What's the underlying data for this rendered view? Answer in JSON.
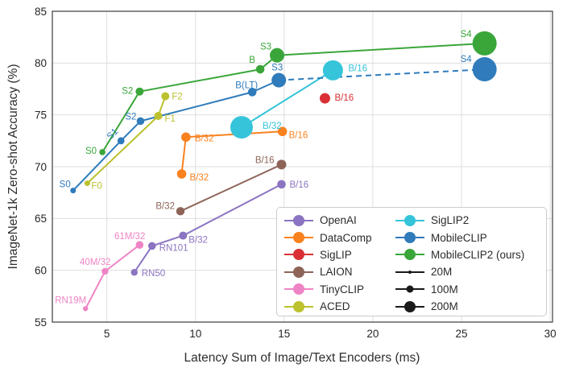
{
  "chart_data": {
    "type": "scatter",
    "title": "",
    "xlabel": "Latency Sum of Image/Text Encoders (ms)",
    "ylabel": "ImageNet-1k Zero-shot Accuracy (%)",
    "xlim": [
      1.93,
      30.13
    ],
    "ylim": [
      55,
      85
    ],
    "xticks": [
      5,
      10,
      15,
      20,
      25,
      30
    ],
    "yticks": [
      55,
      60,
      65,
      70,
      75,
      80,
      85
    ],
    "grid": true,
    "legend_position": "lower right",
    "series": [
      {
        "name": "OpenAI",
        "color": "#8b74c1",
        "points": [
          {
            "x": 6.55,
            "y": 59.8,
            "label": "RN50",
            "r": 4.2,
            "anchor": "start",
            "dx": 9,
            "dy": 5
          },
          {
            "x": 7.55,
            "y": 62.35,
            "label": "RN101",
            "r": 4.8,
            "anchor": "start",
            "dx": 9,
            "dy": 6
          },
          {
            "x": 9.3,
            "y": 63.35,
            "label": "B/32",
            "r": 5.0,
            "anchor": "start",
            "dx": 7,
            "dy": 9
          },
          {
            "x": 14.85,
            "y": 68.3,
            "label": "B/16",
            "r": 5.3,
            "anchor": "start",
            "dx": 10,
            "dy": 4
          }
        ]
      },
      {
        "name": "DataComp",
        "color": "#f9821e",
        "points": [
          {
            "x": 9.22,
            "y": 69.3,
            "label": "B/32",
            "r": 5.8,
            "anchor": "start",
            "dx": 10,
            "dy": 8
          },
          {
            "x": 9.46,
            "y": 72.85,
            "label": "B/32",
            "r": 5.8,
            "anchor": "start",
            "dx": 11,
            "dy": 5
          },
          {
            "x": 14.9,
            "y": 73.4,
            "label": "B/16",
            "r": 5.8,
            "anchor": "start",
            "dx": 8,
            "dy": 8
          }
        ]
      },
      {
        "name": "SigLIP",
        "color": "#da3035",
        "points": [
          {
            "x": 17.3,
            "y": 76.6,
            "label": "B/16",
            "r": 6.5,
            "anchor": "start",
            "dx": 12,
            "dy": 3
          }
        ]
      },
      {
        "name": "LAION",
        "color": "#8e6458",
        "points": [
          {
            "x": 9.15,
            "y": 65.7,
            "label": "B/32",
            "r": 5.2,
            "anchor": "end",
            "dx": -7,
            "dy": -3
          },
          {
            "x": 14.85,
            "y": 70.2,
            "label": "B/16",
            "r": 6.0,
            "anchor": "end",
            "dx": -9,
            "dy": -2
          }
        ]
      },
      {
        "name": "TinyCLIP",
        "color": "#ef84c5",
        "points": [
          {
            "x": 3.8,
            "y": 56.3,
            "label": "RN19M",
            "r": 3.2,
            "anchor": "end",
            "dx": 1,
            "dy": -7
          },
          {
            "x": 4.9,
            "y": 59.9,
            "label": "40M/32",
            "r": 4.2,
            "anchor": "end",
            "dx": 7,
            "dy": -8
          },
          {
            "x": 6.85,
            "y": 62.45,
            "label": "61M/32",
            "r": 4.8,
            "anchor": "end",
            "dx": 7,
            "dy": -7
          }
        ]
      },
      {
        "name": "ACED",
        "color": "#bcc12e",
        "points": [
          {
            "x": 3.9,
            "y": 68.4,
            "label": "F0",
            "r": 3.5,
            "anchor": "start",
            "dx": 5,
            "dy": 7
          },
          {
            "x": 7.9,
            "y": 74.9,
            "label": "F1",
            "r": 5.0,
            "anchor": "start",
            "dx": 8,
            "dy": 7
          },
          {
            "x": 8.3,
            "y": 76.8,
            "label": "F2",
            "r": 5.0,
            "anchor": "start",
            "dx": 8,
            "dy": 4
          }
        ]
      },
      {
        "name": "SigLIP2",
        "color": "#35c4da",
        "points": [
          {
            "x": 12.6,
            "y": 73.8,
            "label": "B/32",
            "r": 14.0,
            "anchor": "start",
            "dx": 26,
            "dy": 2
          },
          {
            "x": 17.75,
            "y": 79.3,
            "label": "B/16",
            "r": 12.5,
            "anchor": "start",
            "dx": 19,
            "dy": 1
          }
        ]
      },
      {
        "name": "MobileCLIP",
        "color": "#2f7bbb",
        "dash_from": 4,
        "points": [
          {
            "x": 3.1,
            "y": 67.7,
            "label": "S0",
            "r": 3.5,
            "anchor": "end",
            "dx": -3,
            "dy": -4
          },
          {
            "x": 5.8,
            "y": 72.5,
            "label": "S1",
            "r": 4.4,
            "anchor": "middle",
            "dx": -8,
            "dy": -6,
            "rot": -45
          },
          {
            "x": 6.9,
            "y": 74.4,
            "label": "S2",
            "r": 4.8,
            "anchor": "end",
            "dx": -5,
            "dy": -2
          },
          {
            "x": 13.2,
            "y": 77.2,
            "label": "B(LT)",
            "r": 5.3,
            "anchor": "middle",
            "dx": -7,
            "dy": -5
          },
          {
            "x": 14.7,
            "y": 78.35,
            "label": "S3",
            "r": 9.0,
            "anchor": "middle",
            "dx": -2,
            "dy": -12
          },
          {
            "x": 26.3,
            "y": 79.4,
            "label": "S4",
            "r": 15.0,
            "anchor": "middle",
            "dx": -23,
            "dy": -9
          }
        ]
      },
      {
        "name": "MobileCLIP2 (ours)",
        "color": "#3aa63a",
        "points": [
          {
            "x": 4.75,
            "y": 71.4,
            "label": "S0",
            "r": 3.8,
            "anchor": "end",
            "dx": -7,
            "dy": 2
          },
          {
            "x": 6.85,
            "y": 77.25,
            "label": "S2",
            "r": 5.0,
            "anchor": "end",
            "dx": -8,
            "dy": 3
          },
          {
            "x": 13.65,
            "y": 79.4,
            "label": "B",
            "r": 5.3,
            "anchor": "middle",
            "dx": -10,
            "dy": -8
          },
          {
            "x": 14.6,
            "y": 80.75,
            "label": "S3",
            "r": 9.0,
            "anchor": "middle",
            "dx": -14,
            "dy": -7
          },
          {
            "x": 26.3,
            "y": 81.9,
            "label": "S4",
            "r": 15.0,
            "anchor": "middle",
            "dx": -23,
            "dy": -8
          }
        ]
      }
    ],
    "legend_entries": [
      {
        "label": "OpenAI",
        "color": "#8b74c1",
        "kind": "series"
      },
      {
        "label": "DataComp",
        "color": "#f9821e",
        "kind": "series"
      },
      {
        "label": "SigLIP",
        "color": "#da3035",
        "kind": "series"
      },
      {
        "label": "LAION",
        "color": "#8e6458",
        "kind": "series"
      },
      {
        "label": "TinyCLIP",
        "color": "#ef84c5",
        "kind": "series"
      },
      {
        "label": "ACED",
        "color": "#bcc12e",
        "kind": "series"
      },
      {
        "label": "SigLIP2",
        "color": "#35c4da",
        "kind": "series"
      },
      {
        "label": "MobileCLIP",
        "color": "#2f7bbb",
        "kind": "series"
      },
      {
        "label": "MobileCLIP2 (ours)",
        "color": "#3aa63a",
        "kind": "series"
      },
      {
        "label": "20M",
        "color": "#1a1a1a",
        "kind": "size",
        "r": 2
      },
      {
        "label": "100M",
        "color": "#1a1a1a",
        "kind": "size",
        "r": 4.5
      },
      {
        "label": "200M",
        "color": "#1a1a1a",
        "kind": "size",
        "r": 7
      }
    ],
    "colors": {
      "grid": "#dedede",
      "spine": "#4a4a4a"
    }
  }
}
